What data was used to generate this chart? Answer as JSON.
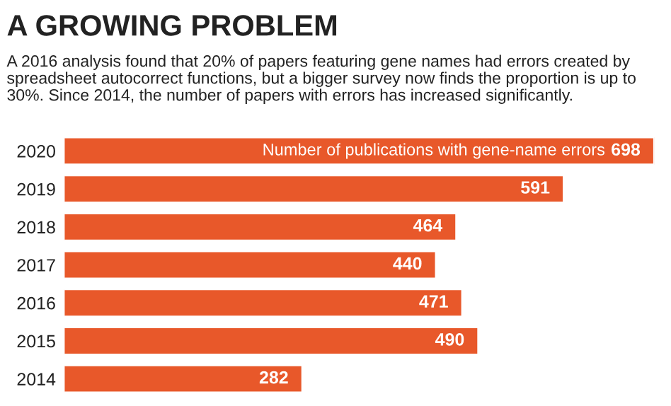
{
  "chart_data": {
    "type": "bar",
    "orientation": "horizontal",
    "title": "A GROWING PROBLEM",
    "subtitle": "A 2016 analysis found that 20% of papers featuring gene names had errors created by spreadsheet autocorrect functions, but a bigger survey now finds the proportion is up to 30%. Since 2014, the number of papers with errors has increased significantly.",
    "categories": [
      "2020",
      "2019",
      "2018",
      "2017",
      "2016",
      "2015",
      "2014"
    ],
    "values": [
      698,
      591,
      464,
      440,
      471,
      490,
      282
    ],
    "color": "#e8582a",
    "data_labels": true,
    "grid": false,
    "legend": false,
    "annotations": [
      "Number of publications with gene-name errors"
    ]
  }
}
